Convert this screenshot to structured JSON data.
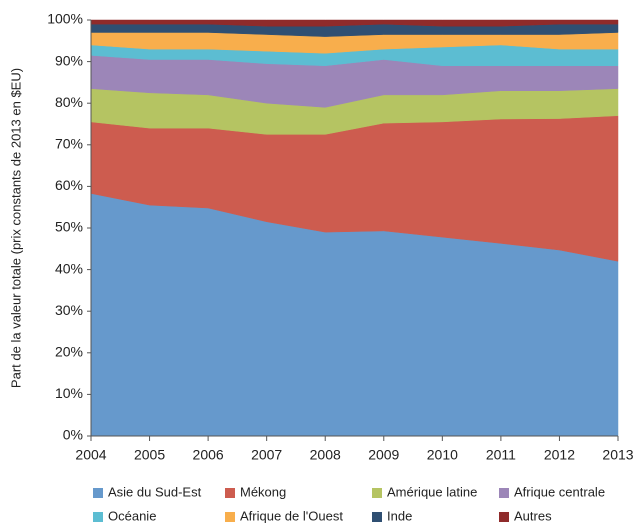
{
  "chart_data": {
    "type": "stacked_area",
    "y_label": "Part de la valeur totale (prix constants de 2013 en $EU)",
    "x": [
      2004,
      2005,
      2006,
      2007,
      2008,
      2009,
      2010,
      2011,
      2012,
      2013
    ],
    "xlim": [
      2004,
      2013
    ],
    "xticks": [
      2004,
      2005,
      2006,
      2007,
      2008,
      2009,
      2010,
      2011,
      2012,
      2013
    ],
    "ylim": [
      0,
      100
    ],
    "yticks": [
      {
        "value": 0,
        "label": "0%"
      },
      {
        "value": 10,
        "label": "10%"
      },
      {
        "value": 20,
        "label": "20%"
      },
      {
        "value": 30,
        "label": "30%"
      },
      {
        "value": 40,
        "label": "40%"
      },
      {
        "value": 50,
        "label": "50%"
      },
      {
        "value": 60,
        "label": "60%"
      },
      {
        "value": 70,
        "label": "70%"
      },
      {
        "value": 80,
        "label": "80%"
      },
      {
        "value": 90,
        "label": "90%"
      },
      {
        "value": 100,
        "label": "100%"
      }
    ],
    "series": [
      {
        "name": "Asie du Sud-Est",
        "color": "#6699cc",
        "values": [
          58.3,
          55.5,
          54.8,
          51.5,
          49,
          49.3,
          47.8,
          46.3,
          44.7,
          42
        ]
      },
      {
        "name": "Mékong",
        "color": "#cd5c4f",
        "values": [
          17.2,
          18.5,
          19.2,
          21,
          23.5,
          25.9,
          27.7,
          29.9,
          31.6,
          35
        ]
      },
      {
        "name": "Amérique latine",
        "color": "#b5c462",
        "values": [
          8,
          8.5,
          8,
          7.5,
          6.5,
          6.8,
          6.5,
          6.8,
          6.7,
          6.5
        ]
      },
      {
        "name": "Afrique centrale",
        "color": "#9c86b8",
        "values": [
          8,
          8,
          8.5,
          9.5,
          10,
          8.5,
          7,
          6,
          6,
          5.5
        ]
      },
      {
        "name": "Océanie",
        "color": "#5cbdd2",
        "values": [
          2.5,
          2.5,
          2.5,
          3,
          3,
          2.5,
          4.5,
          5,
          4,
          4
        ]
      },
      {
        "name": "Afrique de l'Ouest",
        "color": "#f8ae4c",
        "values": [
          3,
          4,
          4,
          4,
          4,
          3.5,
          3,
          2.5,
          3.5,
          4
        ]
      },
      {
        "name": "Inde",
        "color": "#2f4f72",
        "values": [
          2,
          2,
          2,
          2,
          2.5,
          2.5,
          2,
          2,
          2.5,
          2
        ]
      },
      {
        "name": "Autres",
        "color": "#8f2b2b",
        "values": [
          1,
          1,
          1,
          1.5,
          1.5,
          1,
          1.5,
          1.5,
          1,
          1
        ]
      }
    ]
  }
}
